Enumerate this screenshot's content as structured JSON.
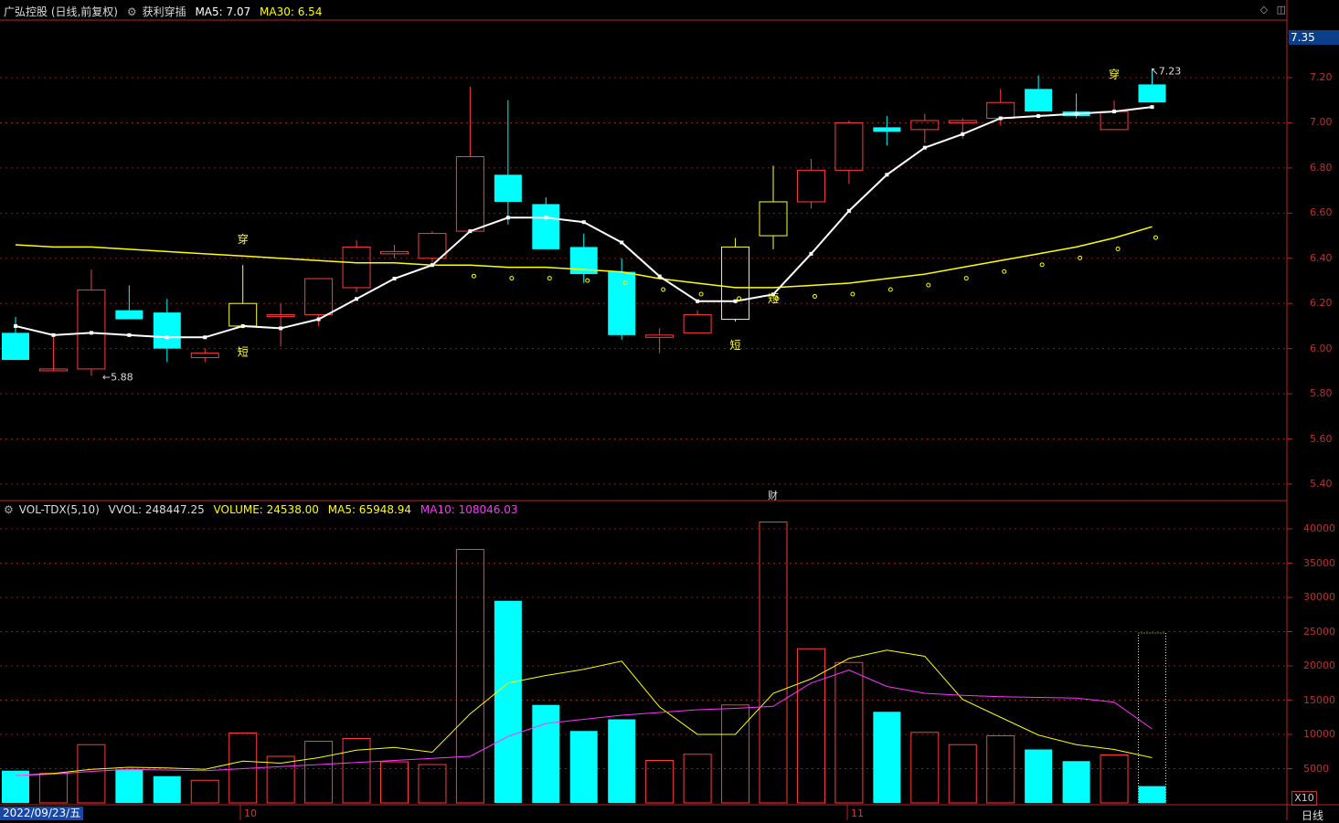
{
  "header": {
    "stock_name": "广弘控股 (日线,前复权)",
    "indicator_name": "获利穿插",
    "ma5_text": "MA5: 7.07",
    "ma30_text": "MA30: 6.54"
  },
  "vol_header": {
    "indicator": "VOL-TDX(5,10)",
    "vvol": "VVOL: 248447.25",
    "volume": "VOLUME: 24538.00",
    "ma5": "MA5: 65948.94",
    "ma10": "MA10: 108046.03"
  },
  "axis": {
    "current_price_box": "7.35",
    "price_ticks": [
      "7.20",
      "7.00",
      "6.80",
      "6.60",
      "6.40",
      "6.20",
      "6.00",
      "5.80",
      "5.60",
      "5.40"
    ],
    "volume_ticks": [
      "40000",
      "35000",
      "30000",
      "25000",
      "20000",
      "15000",
      "10000",
      "5000"
    ],
    "volume_unit": "X10",
    "period": "日线"
  },
  "time_axis": {
    "date_label": "2022/09/23/五",
    "months": [
      "10",
      "11"
    ]
  },
  "annotations": {
    "low_label": "←5.88",
    "high_label": "↖7.23",
    "cai_marker": "财"
  },
  "colors": {
    "up": "#ff3b3b",
    "down": "#00ffff",
    "ma5": "#ffffff",
    "ma30": "#ffff00",
    "vol_ma5": "#ffff00",
    "vol_ma10": "#ff33ff",
    "grid": "#8b1a1a"
  },
  "chart_data": {
    "type": "candlestick",
    "price_range": [
      5.35,
      7.55
    ],
    "volume_range": [
      0,
      42000
    ],
    "candles": [
      {
        "o": 6.07,
        "h": 6.14,
        "l": 5.95,
        "c": 5.95
      },
      {
        "o": 5.91,
        "h": 6.06,
        "l": 5.91,
        "c": 5.91
      },
      {
        "o": 5.91,
        "h": 6.35,
        "l": 5.88,
        "c": 6.26
      },
      {
        "o": 6.17,
        "h": 6.28,
        "l": 6.13,
        "c": 6.13
      },
      {
        "o": 6.16,
        "h": 6.22,
        "l": 5.94,
        "c": 6.0
      },
      {
        "o": 5.96,
        "h": 6.0,
        "l": 5.94,
        "c": 5.98
      },
      {
        "o": 6.1,
        "h": 6.37,
        "l": 6.09,
        "c": 6.2
      },
      {
        "o": 6.15,
        "h": 6.2,
        "l": 6.01,
        "c": 6.15
      },
      {
        "o": 6.15,
        "h": 6.31,
        "l": 6.1,
        "c": 6.31
      },
      {
        "o": 6.27,
        "h": 6.48,
        "l": 6.25,
        "c": 6.45
      },
      {
        "o": 6.42,
        "h": 6.46,
        "l": 6.4,
        "c": 6.43
      },
      {
        "o": 6.4,
        "h": 6.52,
        "l": 6.38,
        "c": 6.51
      },
      {
        "o": 6.52,
        "h": 7.16,
        "l": 6.52,
        "c": 6.85
      },
      {
        "o": 6.77,
        "h": 7.1,
        "l": 6.55,
        "c": 6.65
      },
      {
        "o": 6.64,
        "h": 6.67,
        "l": 6.44,
        "c": 6.44
      },
      {
        "o": 6.45,
        "h": 6.51,
        "l": 6.29,
        "c": 6.33
      },
      {
        "o": 6.34,
        "h": 6.4,
        "l": 6.04,
        "c": 6.06
      },
      {
        "o": 6.05,
        "h": 6.09,
        "l": 5.98,
        "c": 6.06
      },
      {
        "o": 6.07,
        "h": 6.17,
        "l": 6.07,
        "c": 6.15
      },
      {
        "o": 6.13,
        "h": 6.49,
        "l": 6.12,
        "c": 6.45
      },
      {
        "o": 6.5,
        "h": 6.81,
        "l": 6.44,
        "c": 6.65
      },
      {
        "o": 6.65,
        "h": 6.84,
        "l": 6.62,
        "c": 6.79
      },
      {
        "o": 6.79,
        "h": 7.01,
        "l": 6.73,
        "c": 7.0
      },
      {
        "o": 6.98,
        "h": 7.03,
        "l": 6.9,
        "c": 6.96
      },
      {
        "o": 6.97,
        "h": 7.04,
        "l": 6.91,
        "c": 7.01
      },
      {
        "o": 7.0,
        "h": 7.02,
        "l": 6.93,
        "c": 7.01
      },
      {
        "o": 7.02,
        "h": 7.15,
        "l": 6.99,
        "c": 7.09
      },
      {
        "o": 7.15,
        "h": 7.21,
        "l": 7.05,
        "c": 7.05
      },
      {
        "o": 7.05,
        "h": 7.13,
        "l": 7.02,
        "c": 7.03
      },
      {
        "o": 6.97,
        "h": 7.1,
        "l": 6.97,
        "c": 7.05
      },
      {
        "o": 7.17,
        "h": 7.23,
        "l": 7.09,
        "c": 7.09
      }
    ],
    "ma5": [
      6.1,
      6.06,
      6.07,
      6.06,
      6.05,
      6.05,
      6.1,
      6.09,
      6.13,
      6.22,
      6.31,
      6.37,
      6.52,
      6.58,
      6.58,
      6.56,
      6.47,
      6.32,
      6.21,
      6.21,
      6.24,
      6.42,
      6.61,
      6.77,
      6.89,
      6.95,
      7.02,
      7.03,
      7.04,
      7.05,
      7.07
    ],
    "ma30": [
      6.46,
      6.45,
      6.45,
      6.44,
      6.43,
      6.42,
      6.41,
      6.4,
      6.39,
      6.38,
      6.38,
      6.37,
      6.37,
      6.36,
      6.36,
      6.35,
      6.34,
      6.31,
      6.29,
      6.27,
      6.27,
      6.28,
      6.29,
      6.31,
      6.33,
      6.36,
      6.39,
      6.42,
      6.45,
      6.49,
      6.54
    ],
    "volumes": [
      4700,
      4300,
      8500,
      4900,
      3900,
      3300,
      10200,
      6800,
      9000,
      9400,
      6000,
      5600,
      37000,
      29500,
      14300,
      10500,
      12200,
      6200,
      7100,
      14300,
      41000,
      22500,
      20500,
      13300,
      10300,
      8500,
      9800,
      7800,
      6100,
      7000,
      2450
    ],
    "vol_ma5": [
      4000,
      4300,
      4900,
      5200,
      5100,
      4900,
      6100,
      5800,
      6600,
      7700,
      8100,
      7400,
      13000,
      17500,
      18600,
      19500,
      20700,
      14000,
      10000,
      10000,
      16000,
      18100,
      21100,
      22300,
      21400,
      15100,
      12500,
      9900,
      8500,
      7800,
      6600
    ],
    "vol_ma10": [
      4000,
      4200,
      4600,
      4900,
      4800,
      4700,
      5000,
      5300,
      5600,
      5900,
      6200,
      6500,
      6800,
      9700,
      11600,
      12200,
      12800,
      13200,
      13600,
      13800,
      14100,
      17500,
      19400,
      17000,
      16000,
      15700,
      15500,
      15400,
      15300,
      14700,
      10800
    ],
    "labels": [
      {
        "i": 6,
        "text": "穿",
        "pos": "above"
      },
      {
        "i": 6,
        "text": "短",
        "pos": "below"
      },
      {
        "i": 19,
        "text": "短",
        "pos": "below"
      },
      {
        "i": 20,
        "text": "短",
        "pos": "ma30"
      },
      {
        "i": 29,
        "text": "穿",
        "pos": "above"
      }
    ]
  }
}
